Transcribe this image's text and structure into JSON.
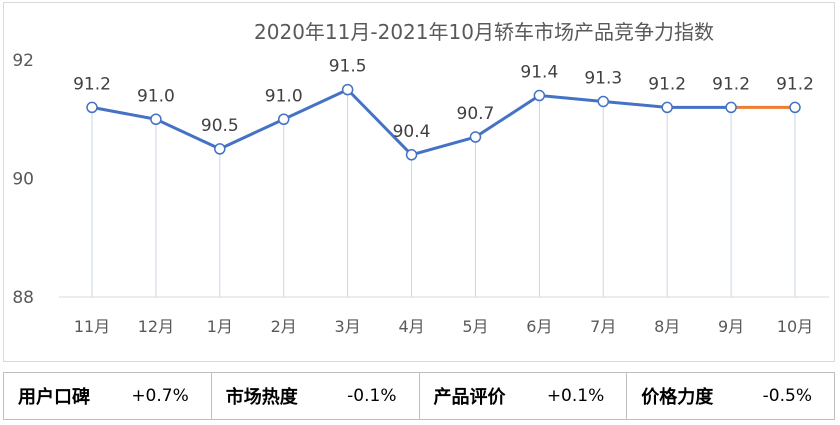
{
  "chart_data": {
    "type": "line",
    "title": "2020年11月-2021年10月轿车市场产品竞争力指数",
    "categories": [
      "11月",
      "12月",
      "1月",
      "2月",
      "3月",
      "4月",
      "5月",
      "6月",
      "7月",
      "8月",
      "9月",
      "10月"
    ],
    "series": [
      {
        "values": [
          91.2,
          91.0,
          90.5,
          91.0,
          91.5,
          90.4,
          90.7,
          91.4,
          91.3,
          91.2,
          91.2,
          91.2
        ],
        "color": "#4472c4",
        "last_segment_color": "#ed7d31"
      }
    ],
    "data_labels": [
      "91.2",
      "91.0",
      "90.5",
      "91.0",
      "91.5",
      "90.4",
      "90.7",
      "91.4",
      "91.3",
      "91.2",
      "91.2",
      "91.2"
    ],
    "ylim": [
      88,
      92
    ],
    "yticks": [
      {
        "value": 92,
        "label": "92"
      },
      {
        "value": 90,
        "label": "90"
      },
      {
        "value": 88,
        "label": "88"
      }
    ],
    "drop_lines": true,
    "grid": false,
    "legend": "none"
  },
  "footer": {
    "metrics": [
      {
        "label": "用户口碑",
        "value": "+0.7%"
      },
      {
        "label": "市场热度",
        "value": "-0.1%"
      },
      {
        "label": "产品评价",
        "value": "+0.1%"
      },
      {
        "label": "价格力度",
        "value": "-0.5%"
      }
    ]
  }
}
